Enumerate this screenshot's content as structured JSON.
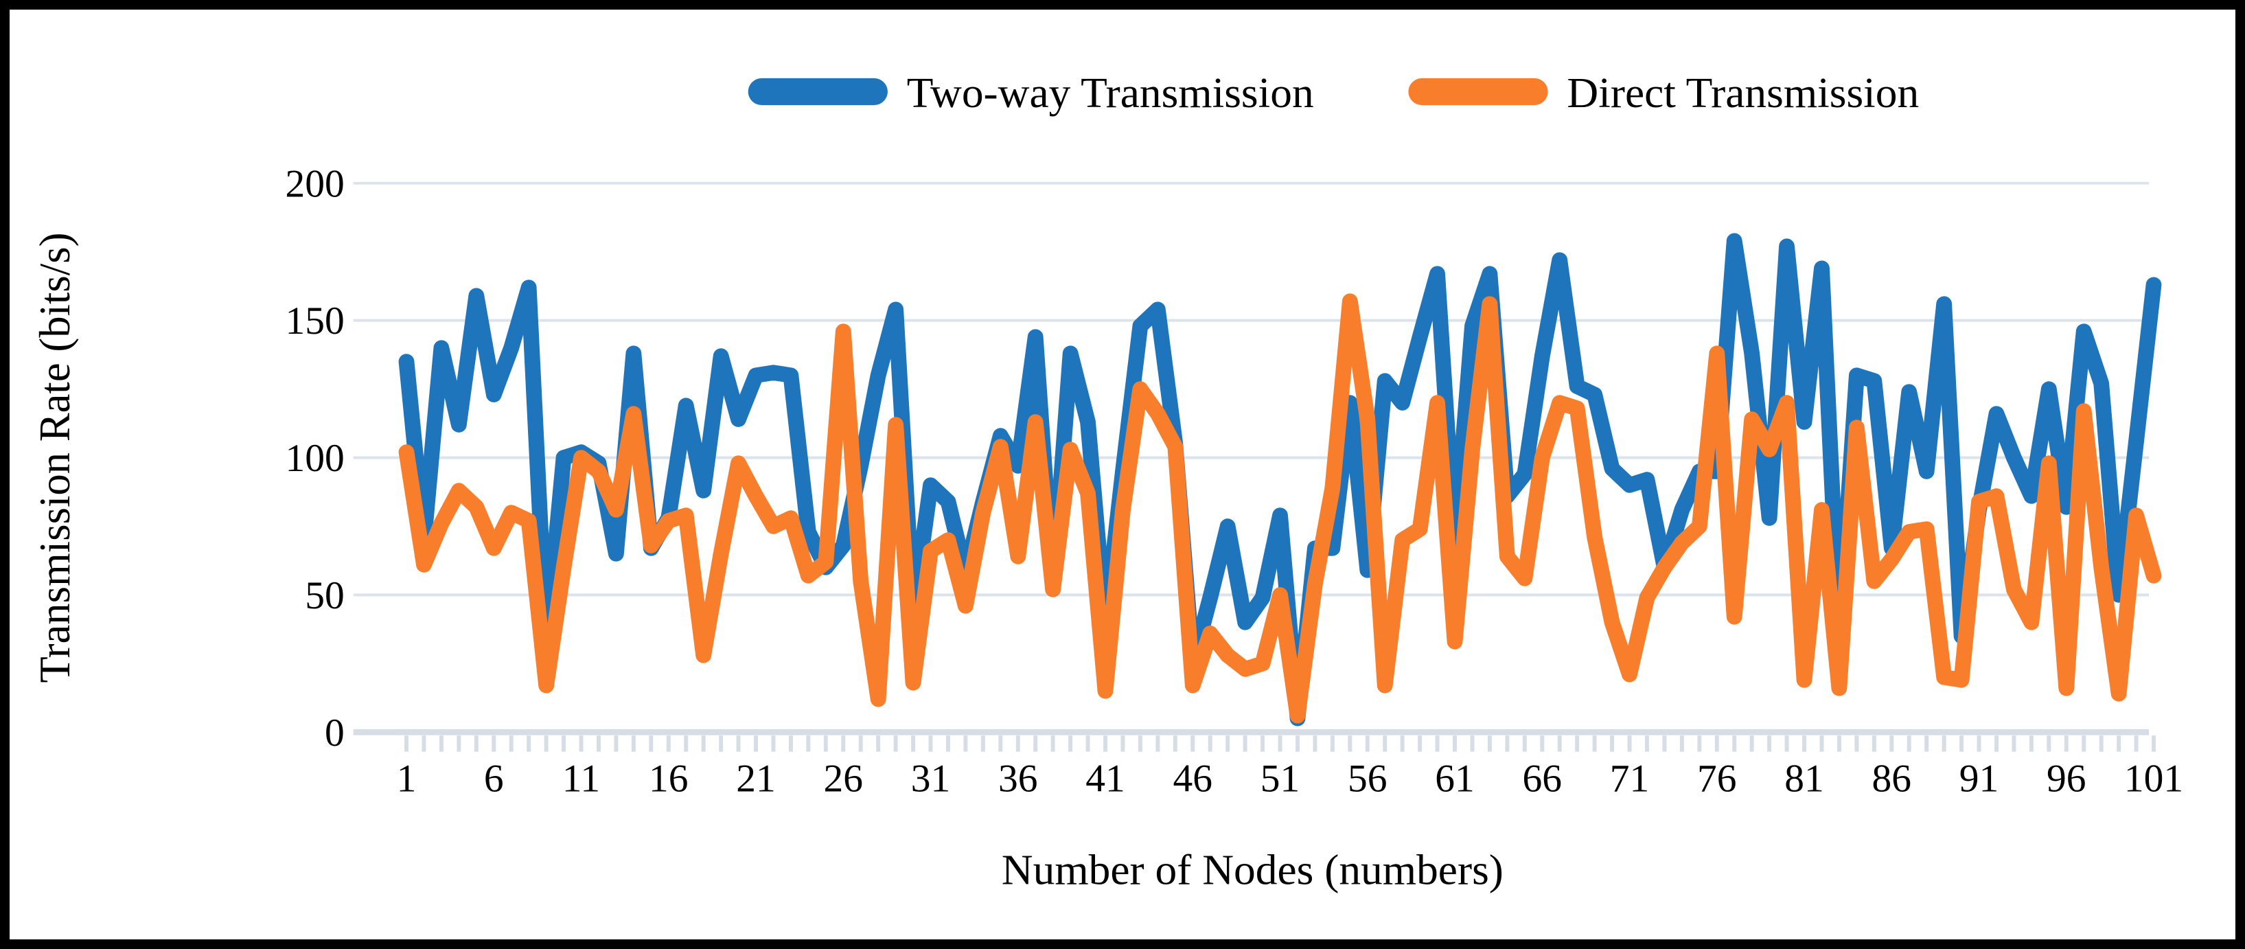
{
  "chart_data": {
    "type": "line",
    "title": "",
    "xlabel": "Number of Nodes (numbers)",
    "ylabel": "Transmission Rate (bits/s)",
    "x_range": [
      1,
      101
    ],
    "n_points": 101,
    "ylim": [
      0,
      200
    ],
    "y_ticks": [
      0,
      50,
      100,
      150,
      200
    ],
    "x_tick_labels": [
      1,
      6,
      11,
      16,
      21,
      26,
      31,
      36,
      41,
      46,
      51,
      56,
      61,
      66,
      71,
      76,
      81,
      86,
      91,
      96,
      101
    ],
    "grid": true,
    "legend_position": "top-center",
    "gridline_color": "#dde3ea",
    "axis_color": "#d6dde5",
    "series": [
      {
        "name": "Two-way Transmission",
        "color": "#1F75BC",
        "values": [
          135,
          70,
          140,
          112,
          159,
          123,
          140,
          162,
          32,
          100,
          102,
          98,
          65,
          138,
          67,
          78,
          119,
          88,
          137,
          114,
          130,
          131,
          130,
          73,
          60,
          68,
          97,
          130,
          154,
          44,
          90,
          84,
          58,
          84,
          108,
          97,
          144,
          52,
          138,
          113,
          39,
          95,
          148,
          154,
          105,
          25,
          49,
          75,
          40,
          49,
          79,
          5,
          67,
          67,
          120,
          59,
          128,
          120,
          144,
          167,
          68,
          148,
          167,
          86,
          94,
          137,
          172,
          126,
          123,
          96,
          90,
          92,
          60,
          81,
          95,
          95,
          179,
          138,
          78,
          177,
          113,
          169,
          35,
          130,
          128,
          67,
          124,
          95,
          156,
          35,
          81,
          116,
          100,
          86,
          125,
          82,
          146,
          127,
          50,
          106,
          163
        ]
      },
      {
        "name": "Direct Transmission",
        "color": "#F97E2B",
        "values": [
          102,
          61,
          76,
          88,
          82,
          67,
          80,
          77,
          17,
          60,
          100,
          95,
          81,
          116,
          68,
          77,
          79,
          28,
          65,
          98,
          86,
          75,
          78,
          57,
          62,
          146,
          55,
          12,
          112,
          18,
          66,
          70,
          46,
          80,
          104,
          64,
          113,
          52,
          103,
          87,
          15,
          81,
          125,
          116,
          104,
          17,
          36,
          28,
          23,
          25,
          50,
          6,
          54,
          89,
          157,
          114,
          17,
          70,
          74,
          120,
          33,
          103,
          156,
          64,
          56,
          100,
          120,
          118,
          71,
          40,
          21,
          49,
          60,
          69,
          75,
          138,
          42,
          114,
          103,
          120,
          19,
          81,
          16,
          111,
          55,
          63,
          73,
          74,
          20,
          19,
          84,
          86,
          52,
          40,
          98,
          16,
          117,
          60,
          14,
          79,
          57
        ]
      }
    ]
  }
}
